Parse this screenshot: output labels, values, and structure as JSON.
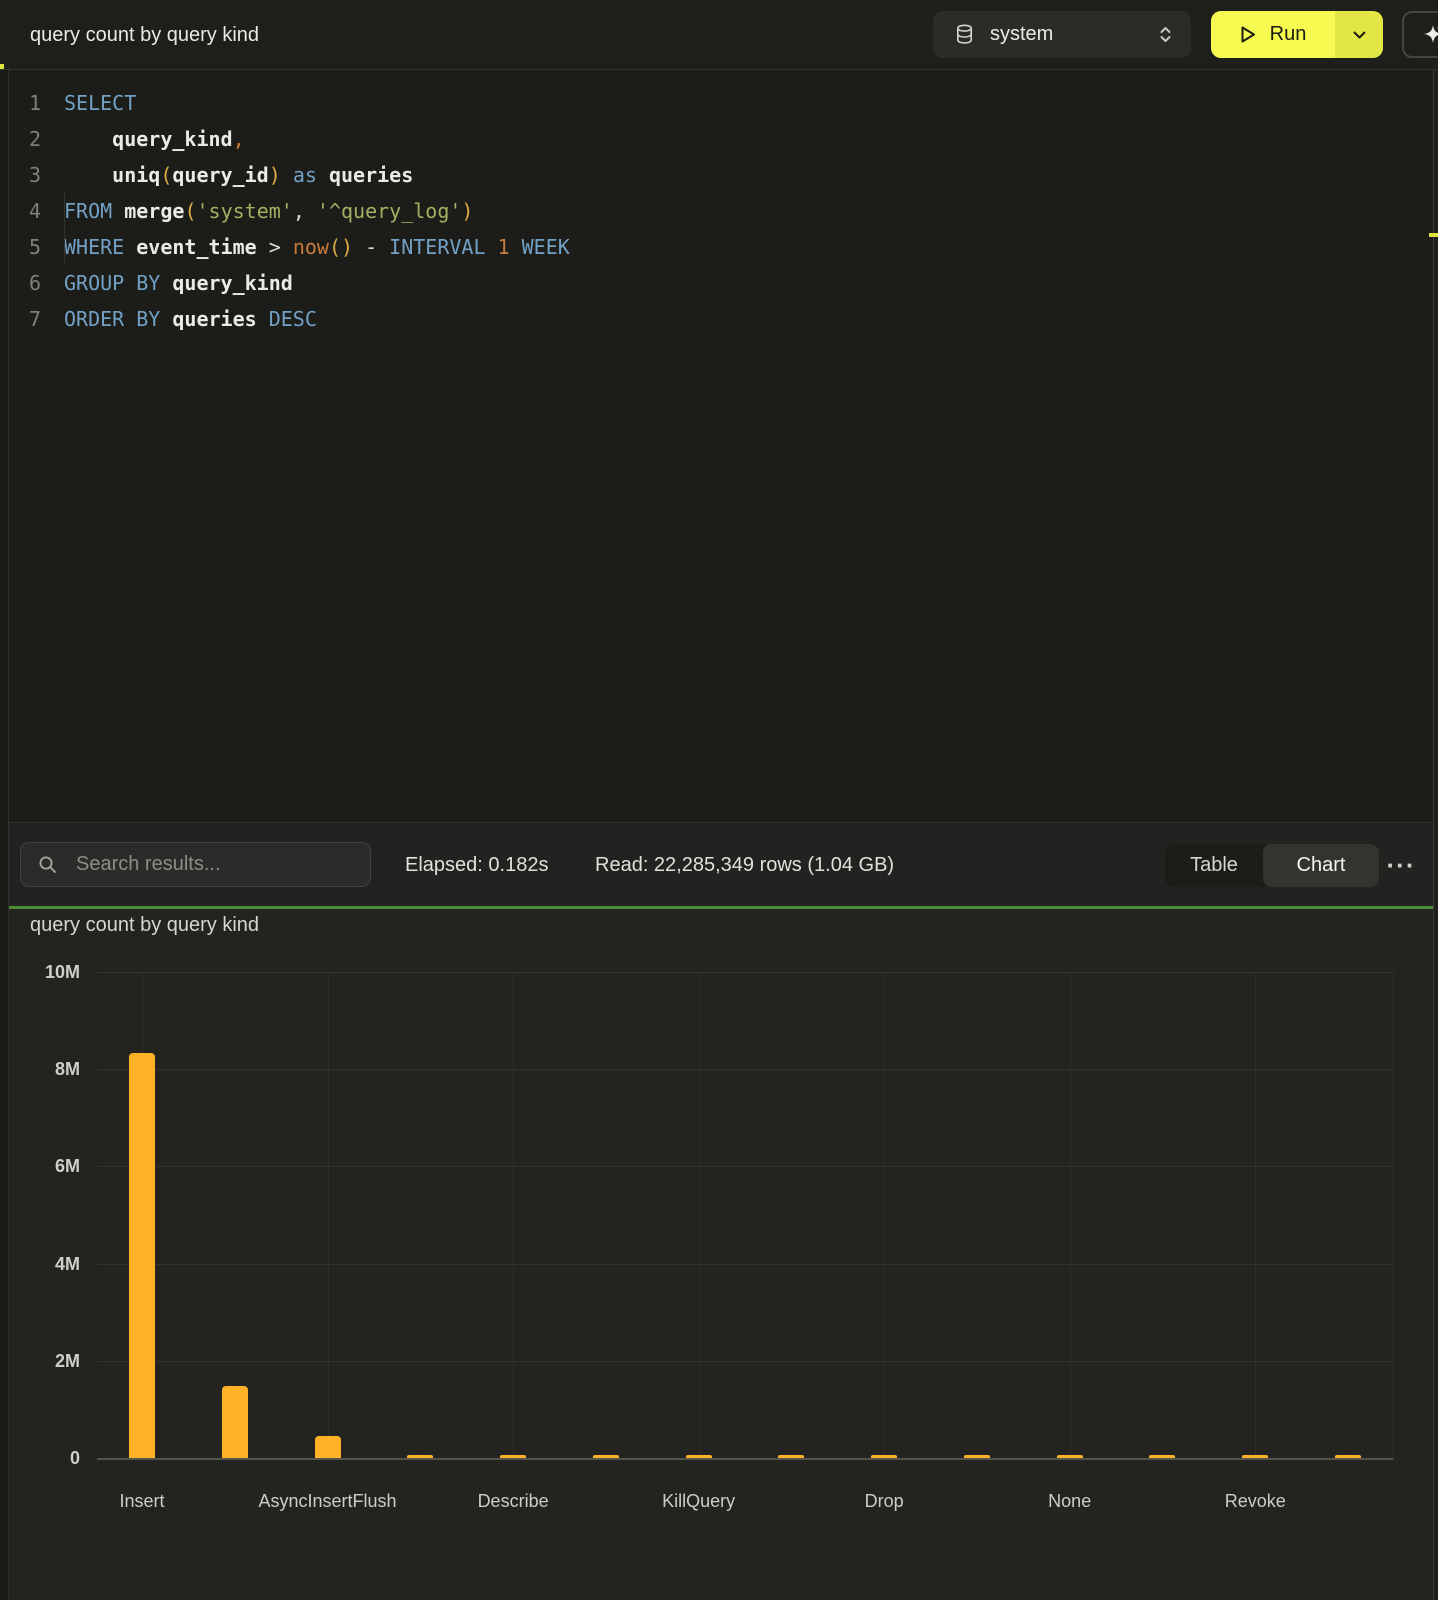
{
  "topbar": {
    "title": "query count by query kind",
    "database_selector": {
      "value": "system"
    },
    "run_button": {
      "label": "Run"
    }
  },
  "icons": {
    "database-icon": "cylinder",
    "select-caret-icon": "up-down chevrons",
    "run-play-icon": "outlined play triangle",
    "run-caret-icon": "chevron down",
    "sparkle-icon": "four-point star sparkle",
    "search-icon": "magnifier",
    "more-icon": "horizontal ellipsis"
  },
  "editor": {
    "lines": [
      {
        "number": "1",
        "tokens": [
          {
            "t": "SELECT",
            "c": "kw"
          }
        ]
      },
      {
        "number": "2",
        "tokens": [
          {
            "t": "    ",
            "c": "op"
          },
          {
            "t": "query_kind",
            "c": "id"
          },
          {
            "t": ",",
            "c": "num"
          }
        ]
      },
      {
        "number": "3",
        "tokens": [
          {
            "t": "    ",
            "c": "op"
          },
          {
            "t": "uniq",
            "c": "id"
          },
          {
            "t": "(",
            "c": "paren"
          },
          {
            "t": "query_id",
            "c": "id"
          },
          {
            "t": ")",
            "c": "paren"
          },
          {
            "t": " ",
            "c": "op"
          },
          {
            "t": "as",
            "c": "kw"
          },
          {
            "t": " ",
            "c": "op"
          },
          {
            "t": "queries",
            "c": "id"
          }
        ]
      },
      {
        "number": "4",
        "tokens": [
          {
            "t": "FROM",
            "c": "kw"
          },
          {
            "t": " ",
            "c": "op"
          },
          {
            "t": "merge",
            "c": "id"
          },
          {
            "t": "(",
            "c": "paren"
          },
          {
            "t": "'system'",
            "c": "str"
          },
          {
            "t": ", ",
            "c": "op"
          },
          {
            "t": "'^query_log'",
            "c": "str"
          },
          {
            "t": ")",
            "c": "paren"
          }
        ]
      },
      {
        "number": "5",
        "tokens": [
          {
            "t": "WHERE",
            "c": "kw"
          },
          {
            "t": " ",
            "c": "op"
          },
          {
            "t": "event_time",
            "c": "id"
          },
          {
            "t": " ",
            "c": "op"
          },
          {
            "t": ">",
            "c": "op"
          },
          {
            "t": " ",
            "c": "op"
          },
          {
            "t": "now",
            "c": "num"
          },
          {
            "t": "()",
            "c": "paren"
          },
          {
            "t": " - ",
            "c": "op"
          },
          {
            "t": "INTERVAL",
            "c": "kw"
          },
          {
            "t": " ",
            "c": "op"
          },
          {
            "t": "1",
            "c": "num"
          },
          {
            "t": " ",
            "c": "op"
          },
          {
            "t": "WEEK",
            "c": "kw"
          }
        ]
      },
      {
        "number": "6",
        "tokens": [
          {
            "t": "GROUP BY",
            "c": "kw"
          },
          {
            "t": " ",
            "c": "op"
          },
          {
            "t": "query_kind",
            "c": "id"
          }
        ]
      },
      {
        "number": "7",
        "tokens": [
          {
            "t": "ORDER BY",
            "c": "kw"
          },
          {
            "t": " ",
            "c": "op"
          },
          {
            "t": "queries",
            "c": "id"
          },
          {
            "t": " ",
            "c": "op"
          },
          {
            "t": "DESC",
            "c": "kw"
          }
        ]
      }
    ]
  },
  "results_bar": {
    "search_placeholder": "Search results...",
    "elapsed": "Elapsed: 0.182s",
    "read": "Read: 22,285,349 rows (1.04 GB)",
    "view_toggle": [
      "Table",
      "Chart"
    ],
    "active_view": "Chart",
    "more_icon": "···"
  },
  "chart_data": {
    "type": "bar",
    "title": "query count by query kind",
    "bar_color": "#ffb128",
    "grid": true,
    "ylim": [
      0,
      10000000
    ],
    "y_ticks": [
      {
        "label": "10M",
        "value": 10000000
      },
      {
        "label": "8M",
        "value": 8000000
      },
      {
        "label": "6M",
        "value": 6000000
      },
      {
        "label": "4M",
        "value": 4000000
      },
      {
        "label": "2M",
        "value": 2000000
      },
      {
        "label": "0",
        "value": 0
      }
    ],
    "x_tick_labels": [
      "Insert",
      "AsyncInsertFlush",
      "Describe",
      "KillQuery",
      "Drop",
      "None",
      "Revoke"
    ],
    "bars": [
      {
        "label": "Insert",
        "value": 8340000
      },
      {
        "label": "",
        "value": 1480000
      },
      {
        "label": "AsyncInsertFlush",
        "value": 450000
      },
      {
        "label": "",
        "value": 70000
      },
      {
        "label": "Describe",
        "value": 70000
      },
      {
        "label": "",
        "value": 70000
      },
      {
        "label": "KillQuery",
        "value": 70000
      },
      {
        "label": "",
        "value": 70000
      },
      {
        "label": "Drop",
        "value": 70000
      },
      {
        "label": "",
        "value": 70000
      },
      {
        "label": "None",
        "value": 70000
      },
      {
        "label": "",
        "value": 70000
      },
      {
        "label": "Revoke",
        "value": 70000
      },
      {
        "label": "",
        "value": 70000
      }
    ]
  }
}
